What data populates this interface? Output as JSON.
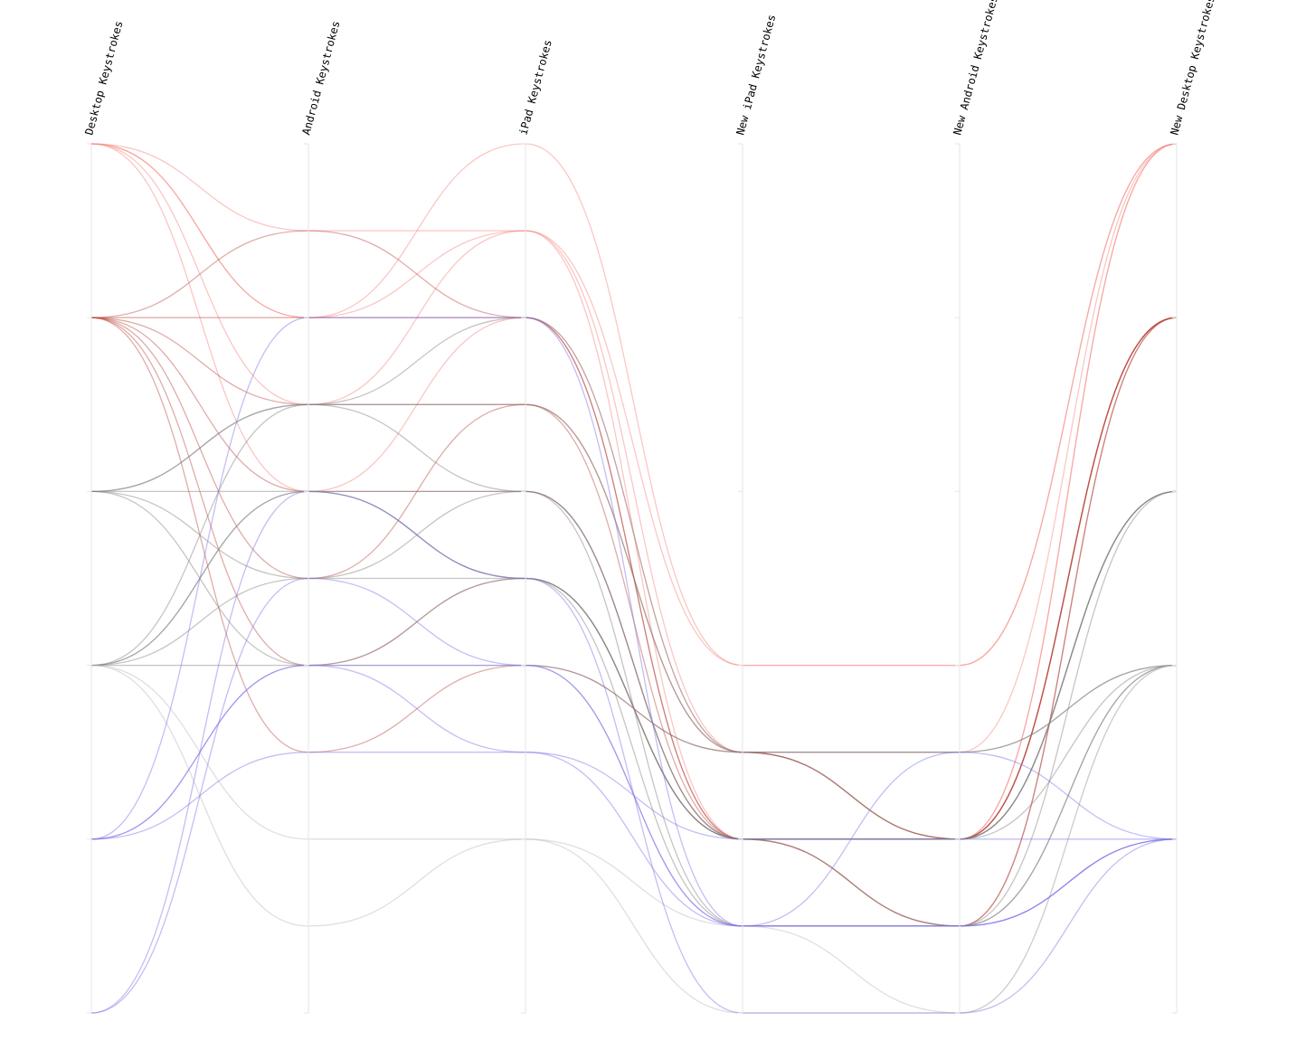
{
  "chart_data": {
    "type": "parallel-coordinates",
    "dimensions": [
      "Desktop Keystrokes",
      "Android Keystrokes",
      "iPad Keystrokes",
      "New iPad Keystrokes",
      "New Android Keystrokes",
      "New Desktop Keystrokes"
    ],
    "ylim": [
      0,
      5
    ],
    "grid": false,
    "legend": "none",
    "curve": "smooth",
    "colors": {
      "high": "#f4827c",
      "mid": "#7f7f7f",
      "low": "#7b6fe6",
      "axis": "#e6e6e6"
    },
    "lines": [
      {
        "values": [
          5,
          3.5,
          4.5,
          2.0,
          2.0,
          5
        ],
        "color": "#f4827c"
      },
      {
        "values": [
          5,
          4.0,
          4.5,
          1.5,
          1.5,
          5
        ],
        "color": "#f4827c"
      },
      {
        "values": [
          5,
          4.0,
          5.0,
          2.0,
          2.0,
          5
        ],
        "color": "#f4827c"
      },
      {
        "values": [
          5,
          3.0,
          4.0,
          1.5,
          1.0,
          5
        ],
        "color": "#f4827c"
      },
      {
        "values": [
          5,
          4.5,
          4.5,
          1.0,
          1.0,
          5
        ],
        "color": "#f4827c"
      },
      {
        "values": [
          4,
          4.5,
          4.0,
          1.0,
          1.0,
          4
        ],
        "color": "#b84a40"
      },
      {
        "values": [
          4,
          4.0,
          4.0,
          1.0,
          1.0,
          4
        ],
        "color": "#b84a40"
      },
      {
        "values": [
          4,
          3.5,
          3.5,
          1.0,
          1.0,
          4
        ],
        "color": "#b84a40"
      },
      {
        "values": [
          4,
          3.0,
          3.0,
          1.0,
          0.5,
          4
        ],
        "color": "#b84a40"
      },
      {
        "values": [
          4,
          2.5,
          3.5,
          1.5,
          1.0,
          4
        ],
        "color": "#b84a40"
      },
      {
        "values": [
          4,
          2.0,
          2.5,
          1.0,
          0.5,
          4
        ],
        "color": "#b84a40"
      },
      {
        "values": [
          4,
          1.5,
          2.0,
          1.5,
          1.0,
          4
        ],
        "color": "#b84a40"
      },
      {
        "values": [
          3,
          3.5,
          3.0,
          1.0,
          1.0,
          3
        ],
        "color": "#7f7f7f"
      },
      {
        "values": [
          3,
          3.0,
          2.5,
          1.0,
          1.0,
          3
        ],
        "color": "#7f7f7f"
      },
      {
        "values": [
          3,
          2.5,
          3.0,
          1.0,
          1.0,
          3
        ],
        "color": "#7f7f7f"
      },
      {
        "values": [
          3,
          2.0,
          2.5,
          0.5,
          0.5,
          3
        ],
        "color": "#7f7f7f"
      },
      {
        "values": [
          3,
          3.5,
          3.5,
          1.5,
          1.0,
          3
        ],
        "color": "#7f7f7f"
      },
      {
        "values": [
          2,
          3.5,
          4.0,
          1.5,
          1.5,
          2
        ],
        "color": "#7f7f7f"
      },
      {
        "values": [
          2,
          3.0,
          2.5,
          1.0,
          0.5,
          2
        ],
        "color": "#7f7f7f"
      },
      {
        "values": [
          2,
          2.5,
          2.5,
          1.0,
          1.0,
          2
        ],
        "color": "#7f7f7f"
      },
      {
        "values": [
          2,
          2.0,
          2.0,
          1.5,
          1.5,
          2
        ],
        "color": "#7f7f7f"
      },
      {
        "values": [
          2,
          3.0,
          3.0,
          0.5,
          0.5,
          2
        ],
        "color": "#7f7f7f"
      },
      {
        "values": [
          2,
          1.0,
          1.0,
          0.5,
          0.0,
          2
        ],
        "color": "#b8b8b8"
      },
      {
        "values": [
          2,
          0.5,
          1.0,
          0.0,
          0.0,
          2
        ],
        "color": "#b8b8b8"
      },
      {
        "values": [
          1,
          4.0,
          4.0,
          0.5,
          0.5,
          1
        ],
        "color": "#7b6fe6"
      },
      {
        "values": [
          1,
          2.0,
          2.0,
          0.5,
          0.5,
          1
        ],
        "color": "#7b6fe6"
      },
      {
        "values": [
          1,
          1.5,
          1.5,
          1.0,
          1.0,
          1
        ],
        "color": "#7b6fe6"
      },
      {
        "values": [
          1,
          2.0,
          1.5,
          0.5,
          0.5,
          1
        ],
        "color": "#7b6fe6"
      },
      {
        "values": [
          0,
          2.5,
          2.0,
          0.5,
          1.5,
          1
        ],
        "color": "#7b6fe6"
      },
      {
        "values": [
          0,
          3.0,
          2.5,
          0.0,
          0.0,
          1
        ],
        "color": "#7b6fe6"
      }
    ]
  }
}
